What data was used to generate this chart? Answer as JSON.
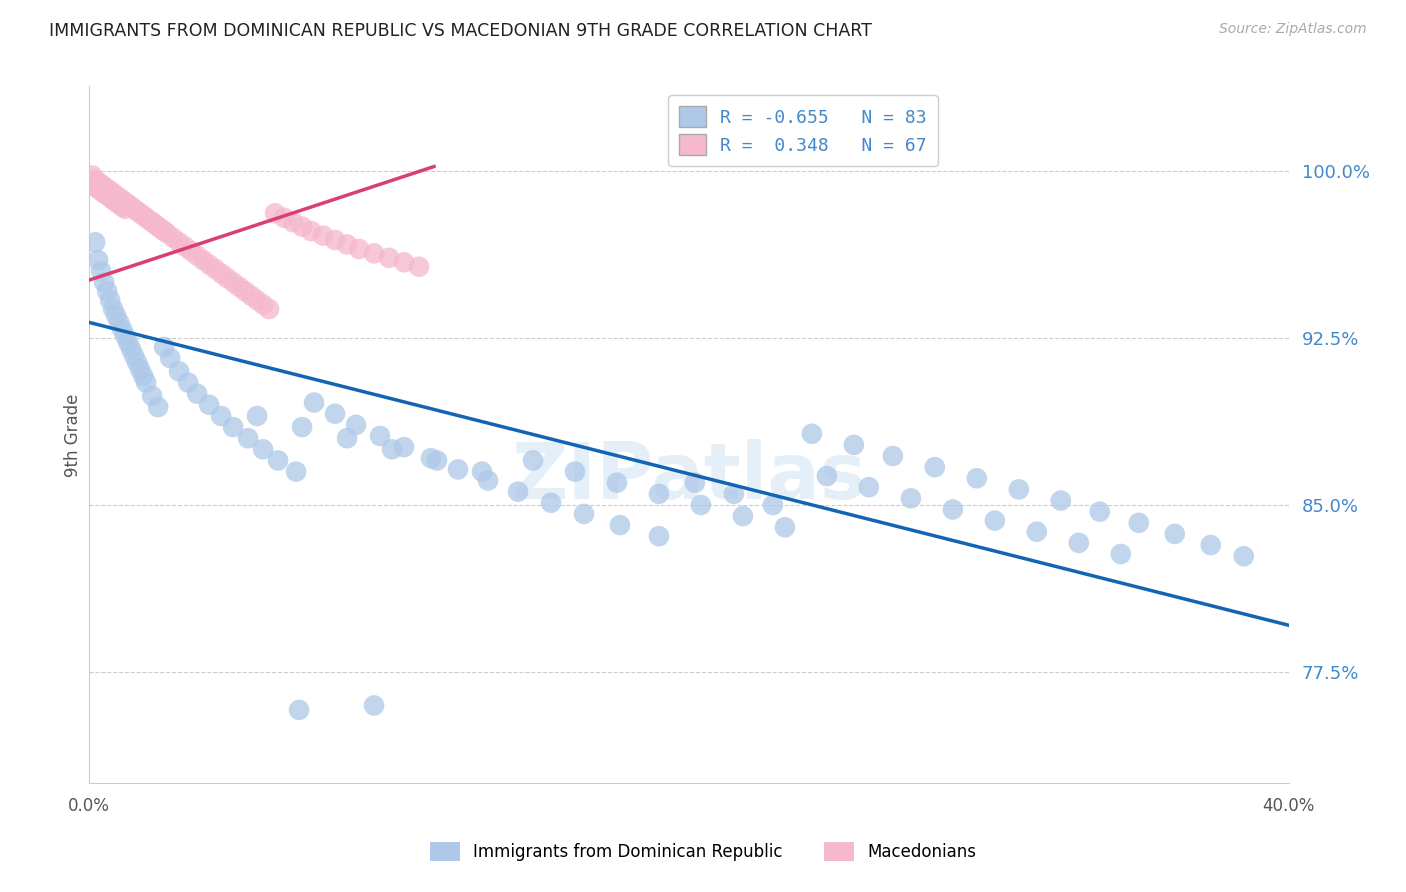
{
  "title": "IMMIGRANTS FROM DOMINICAN REPUBLIC VS MACEDONIAN 9TH GRADE CORRELATION CHART",
  "source": "Source: ZipAtlas.com",
  "ylabel": "9th Grade",
  "yticks": [
    0.775,
    0.85,
    0.925,
    1.0
  ],
  "ytick_labels": [
    "77.5%",
    "85.0%",
    "92.5%",
    "100.0%"
  ],
  "xmin": 0.0,
  "xmax": 0.4,
  "ymin": 0.725,
  "ymax": 1.038,
  "blue_R": -0.655,
  "blue_N": 83,
  "pink_R": 0.348,
  "pink_N": 67,
  "blue_color": "#adc8e8",
  "blue_line_color": "#1464b4",
  "pink_color": "#f5b8cc",
  "pink_line_color": "#d94070",
  "legend_label_blue": "Immigrants from Dominican Republic",
  "legend_label_pink": "Macedonians",
  "watermark": "ZIPatlas",
  "blue_line_x0": 0.0,
  "blue_line_y0": 0.932,
  "blue_line_x1": 0.4,
  "blue_line_y1": 0.796,
  "pink_line_x0": 0.0,
  "pink_line_y0": 0.951,
  "pink_line_x1": 0.115,
  "pink_line_y1": 1.002,
  "blue_scatter_x": [
    0.002,
    0.003,
    0.004,
    0.005,
    0.006,
    0.007,
    0.008,
    0.009,
    0.01,
    0.011,
    0.012,
    0.013,
    0.014,
    0.015,
    0.016,
    0.017,
    0.018,
    0.019,
    0.021,
    0.023,
    0.025,
    0.027,
    0.03,
    0.033,
    0.036,
    0.04,
    0.044,
    0.048,
    0.053,
    0.058,
    0.063,
    0.069,
    0.075,
    0.082,
    0.089,
    0.097,
    0.105,
    0.114,
    0.123,
    0.133,
    0.143,
    0.154,
    0.165,
    0.177,
    0.19,
    0.202,
    0.215,
    0.228,
    0.241,
    0.255,
    0.268,
    0.282,
    0.296,
    0.31,
    0.324,
    0.337,
    0.35,
    0.362,
    0.374,
    0.385,
    0.148,
    0.162,
    0.176,
    0.19,
    0.204,
    0.218,
    0.232,
    0.246,
    0.26,
    0.274,
    0.288,
    0.302,
    0.316,
    0.33,
    0.344,
    0.056,
    0.071,
    0.086,
    0.101,
    0.116,
    0.131,
    0.07,
    0.095
  ],
  "blue_scatter_y": [
    0.968,
    0.96,
    0.955,
    0.95,
    0.946,
    0.942,
    0.938,
    0.935,
    0.932,
    0.929,
    0.926,
    0.923,
    0.92,
    0.917,
    0.914,
    0.911,
    0.908,
    0.905,
    0.899,
    0.894,
    0.921,
    0.916,
    0.91,
    0.905,
    0.9,
    0.895,
    0.89,
    0.885,
    0.88,
    0.875,
    0.87,
    0.865,
    0.896,
    0.891,
    0.886,
    0.881,
    0.876,
    0.871,
    0.866,
    0.861,
    0.856,
    0.851,
    0.846,
    0.841,
    0.836,
    0.86,
    0.855,
    0.85,
    0.882,
    0.877,
    0.872,
    0.867,
    0.862,
    0.857,
    0.852,
    0.847,
    0.842,
    0.837,
    0.832,
    0.827,
    0.87,
    0.865,
    0.86,
    0.855,
    0.85,
    0.845,
    0.84,
    0.863,
    0.858,
    0.853,
    0.848,
    0.843,
    0.838,
    0.833,
    0.828,
    0.89,
    0.885,
    0.88,
    0.875,
    0.87,
    0.865,
    0.758,
    0.76
  ],
  "pink_scatter_x": [
    0.001,
    0.002,
    0.003,
    0.004,
    0.005,
    0.006,
    0.007,
    0.008,
    0.009,
    0.01,
    0.011,
    0.012,
    0.013,
    0.014,
    0.015,
    0.016,
    0.017,
    0.018,
    0.019,
    0.02,
    0.021,
    0.022,
    0.023,
    0.024,
    0.025,
    0.026,
    0.028,
    0.03,
    0.032,
    0.034,
    0.036,
    0.038,
    0.04,
    0.042,
    0.044,
    0.046,
    0.048,
    0.05,
    0.052,
    0.054,
    0.056,
    0.058,
    0.06,
    0.062,
    0.065,
    0.068,
    0.071,
    0.074,
    0.078,
    0.082,
    0.086,
    0.09,
    0.095,
    0.1,
    0.105,
    0.11,
    0.002,
    0.003,
    0.004,
    0.005,
    0.006,
    0.007,
    0.008,
    0.009,
    0.01,
    0.011,
    0.012
  ],
  "pink_scatter_y": [
    0.998,
    0.996,
    0.995,
    0.994,
    0.993,
    0.992,
    0.991,
    0.99,
    0.989,
    0.988,
    0.987,
    0.986,
    0.985,
    0.984,
    0.983,
    0.982,
    0.981,
    0.98,
    0.979,
    0.978,
    0.977,
    0.976,
    0.975,
    0.974,
    0.973,
    0.972,
    0.97,
    0.968,
    0.966,
    0.964,
    0.962,
    0.96,
    0.958,
    0.956,
    0.954,
    0.952,
    0.95,
    0.948,
    0.946,
    0.944,
    0.942,
    0.94,
    0.938,
    0.981,
    0.979,
    0.977,
    0.975,
    0.973,
    0.971,
    0.969,
    0.967,
    0.965,
    0.963,
    0.961,
    0.959,
    0.957,
    0.993,
    0.992,
    0.991,
    0.99,
    0.989,
    0.988,
    0.987,
    0.986,
    0.985,
    0.984,
    0.983
  ]
}
